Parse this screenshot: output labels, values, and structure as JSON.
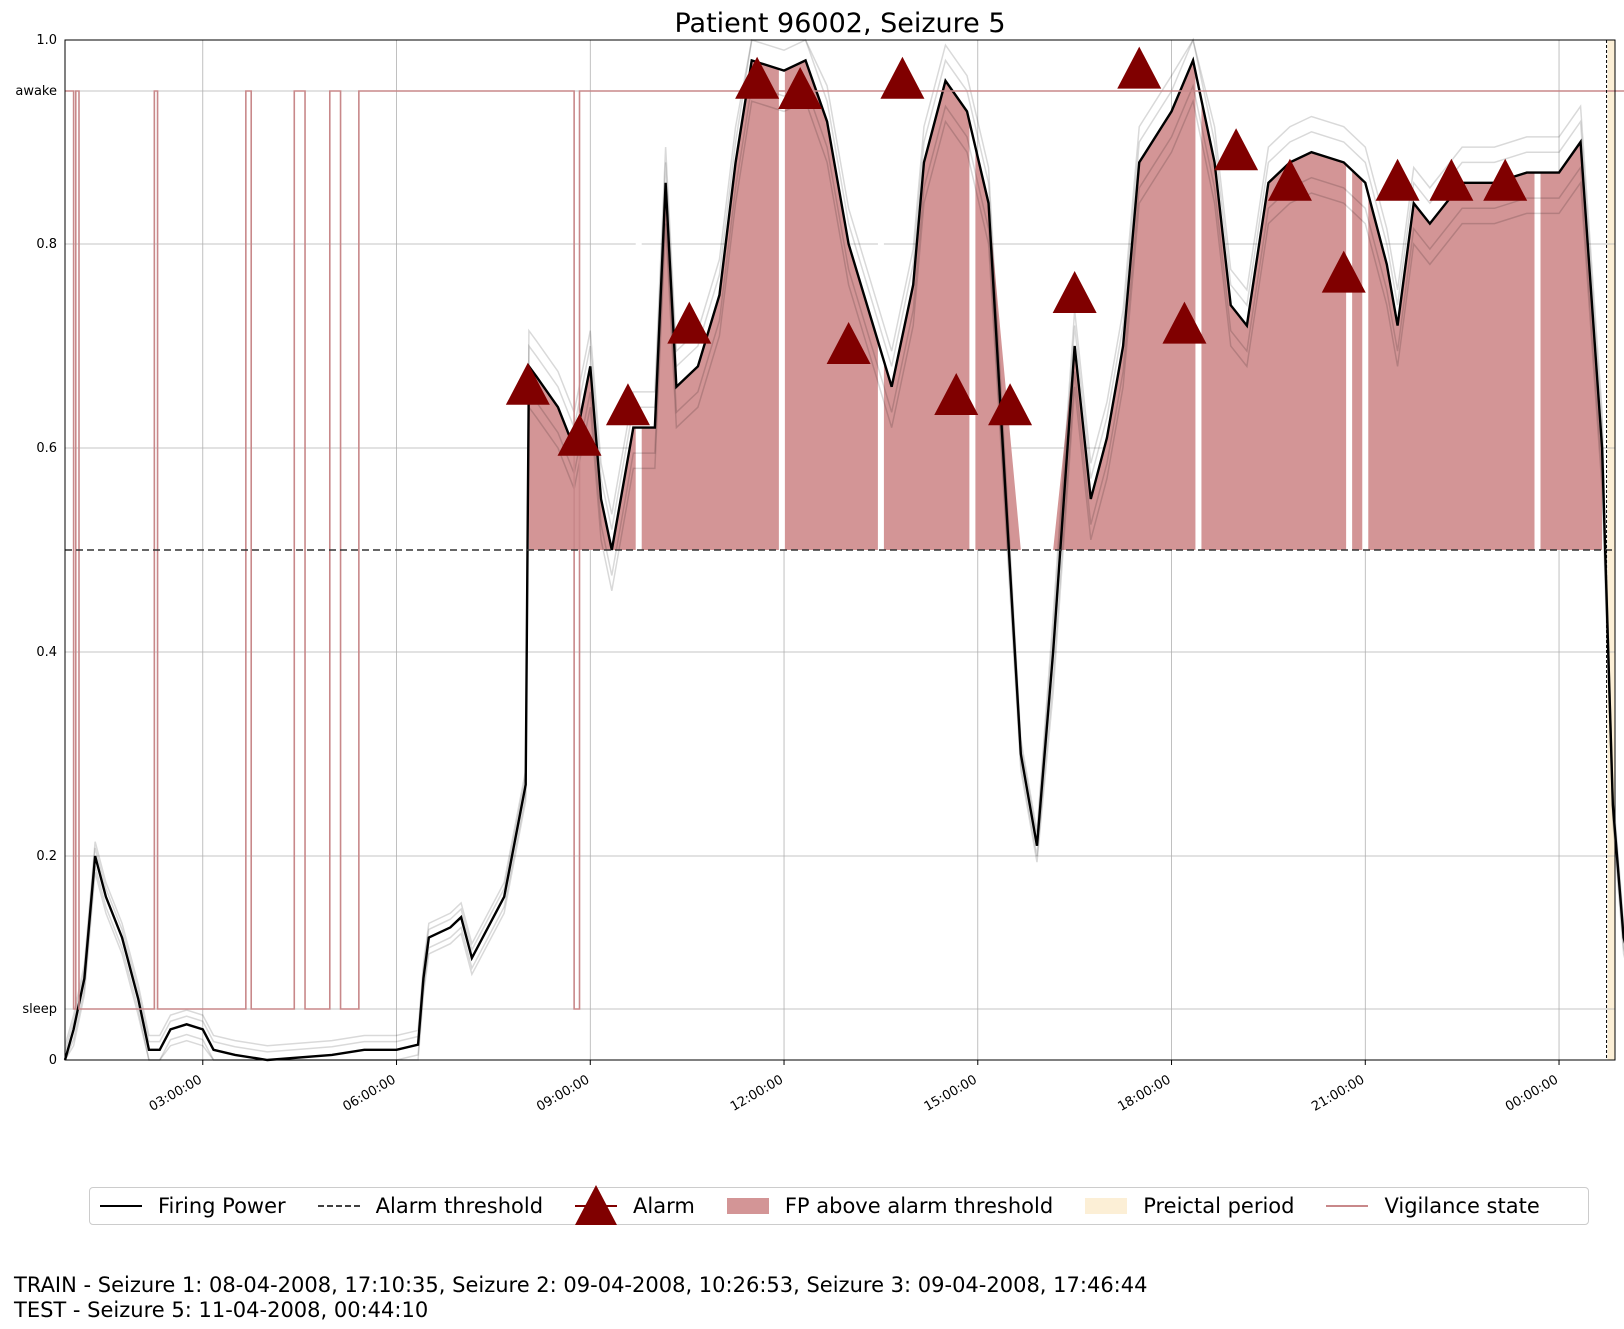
{
  "chart_data": {
    "type": "line",
    "title": "Patient 96002, Seizure 5",
    "xlabel": "",
    "ylabel": "",
    "x_unit": "hours since 00:52 (day 10-04-2008)",
    "xlim": [
      "00:52:00",
      "00:52:00 +1d"
    ],
    "ylim": [
      0,
      1.0
    ],
    "grid": true,
    "x_ticks": [
      "03:00:00",
      "06:00:00",
      "09:00:00",
      "12:00:00",
      "15:00:00",
      "18:00:00",
      "21:00:00",
      "00:00:00"
    ],
    "y_ticks": [
      "0",
      "0.2",
      "0.4",
      "0.6",
      "0.8",
      "1.0"
    ],
    "y_state_ticks": [
      {
        "label": "awake",
        "value": 0.95
      },
      {
        "label": "sleep",
        "value": 0.05
      }
    ],
    "alarm_threshold": 0.5,
    "series": [
      {
        "name": "Firing Power",
        "color": "#000000",
        "points": [
          [
            "00:52",
            0.0
          ],
          [
            "01:00",
            0.03
          ],
          [
            "01:10",
            0.08
          ],
          [
            "01:20",
            0.2
          ],
          [
            "01:30",
            0.16
          ],
          [
            "01:45",
            0.12
          ],
          [
            "02:00",
            0.06
          ],
          [
            "02:10",
            0.01
          ],
          [
            "02:20",
            0.01
          ],
          [
            "02:30",
            0.03
          ],
          [
            "02:45",
            0.035
          ],
          [
            "03:00",
            0.03
          ],
          [
            "03:10",
            0.01
          ],
          [
            "03:30",
            0.005
          ],
          [
            "04:00",
            0.0
          ],
          [
            "05:00",
            0.005
          ],
          [
            "05:30",
            0.01
          ],
          [
            "06:00",
            0.01
          ],
          [
            "06:20",
            0.015
          ],
          [
            "06:25",
            0.08
          ],
          [
            "06:30",
            0.12
          ],
          [
            "06:50",
            0.13
          ],
          [
            "07:00",
            0.14
          ],
          [
            "07:10",
            0.1
          ],
          [
            "07:40",
            0.16
          ],
          [
            "08:00",
            0.27
          ],
          [
            "08:03",
            0.68
          ],
          [
            "08:10",
            0.67
          ],
          [
            "08:30",
            0.64
          ],
          [
            "08:45",
            0.6
          ],
          [
            "09:00",
            0.68
          ],
          [
            "09:10",
            0.55
          ],
          [
            "09:20",
            0.5
          ],
          [
            "09:40",
            0.62
          ],
          [
            "10:00",
            0.62
          ],
          [
            "10:10",
            0.86
          ],
          [
            "10:20",
            0.66
          ],
          [
            "10:40",
            0.68
          ],
          [
            "11:00",
            0.75
          ],
          [
            "11:15",
            0.88
          ],
          [
            "11:30",
            0.98
          ],
          [
            "12:00",
            0.97
          ],
          [
            "12:20",
            0.98
          ],
          [
            "12:40",
            0.92
          ],
          [
            "13:00",
            0.8
          ],
          [
            "13:20",
            0.73
          ],
          [
            "13:40",
            0.66
          ],
          [
            "14:00",
            0.76
          ],
          [
            "14:10",
            0.88
          ],
          [
            "14:30",
            0.96
          ],
          [
            "14:50",
            0.93
          ],
          [
            "15:10",
            0.84
          ],
          [
            "15:40",
            0.3
          ],
          [
            "15:55",
            0.21
          ],
          [
            "16:10",
            0.4
          ],
          [
            "16:30",
            0.7
          ],
          [
            "16:45",
            0.55
          ],
          [
            "17:00",
            0.61
          ],
          [
            "17:15",
            0.7
          ],
          [
            "17:30",
            0.88
          ],
          [
            "18:00",
            0.93
          ],
          [
            "18:20",
            0.98
          ],
          [
            "18:40",
            0.88
          ],
          [
            "18:55",
            0.74
          ],
          [
            "19:10",
            0.72
          ],
          [
            "19:30",
            0.86
          ],
          [
            "19:50",
            0.88
          ],
          [
            "20:10",
            0.89
          ],
          [
            "20:40",
            0.88
          ],
          [
            "21:00",
            0.86
          ],
          [
            "21:20",
            0.78
          ],
          [
            "21:30",
            0.72
          ],
          [
            "21:45",
            0.84
          ],
          [
            "22:00",
            0.82
          ],
          [
            "22:30",
            0.86
          ],
          [
            "23:00",
            0.86
          ],
          [
            "23:30",
            0.87
          ],
          [
            "00:00",
            0.87
          ],
          [
            "00:20",
            0.9
          ],
          [
            "00:40",
            0.6
          ],
          [
            "00:50",
            0.25
          ],
          [
            "01:00",
            0.12
          ],
          [
            "01:20",
            0.04
          ]
        ]
      },
      {
        "name": "Vigilance state",
        "color": "#c8888a",
        "steps": [
          [
            "00:52",
            "awake"
          ],
          [
            "01:00",
            "sleep"
          ],
          [
            "01:02",
            "awake"
          ],
          [
            "01:05",
            "sleep"
          ],
          [
            "02:15",
            "awake"
          ],
          [
            "02:18",
            "sleep"
          ],
          [
            "03:40",
            "awake"
          ],
          [
            "03:45",
            "sleep"
          ],
          [
            "04:25",
            "awake"
          ],
          [
            "04:35",
            "sleep"
          ],
          [
            "04:58",
            "awake"
          ],
          [
            "05:08",
            "sleep"
          ],
          [
            "05:25",
            "awake"
          ],
          [
            "08:45",
            "sleep"
          ],
          [
            "08:50",
            "awake"
          ],
          [
            "01:22",
            "awake"
          ]
        ]
      }
    ],
    "alarms": [
      [
        "08:02",
        0.66
      ],
      [
        "08:50",
        0.61
      ],
      [
        "09:35",
        0.64
      ],
      [
        "10:32",
        0.72
      ],
      [
        "11:35",
        0.96
      ],
      [
        "12:15",
        0.95
      ],
      [
        "13:00",
        0.7
      ],
      [
        "13:50",
        0.96
      ],
      [
        "14:40",
        0.65
      ],
      [
        "15:30",
        0.64
      ],
      [
        "16:30",
        0.75
      ],
      [
        "17:30",
        0.97
      ],
      [
        "18:12",
        0.72
      ],
      [
        "19:00",
        0.89
      ],
      [
        "19:50",
        0.86
      ],
      [
        "20:40",
        0.77
      ],
      [
        "21:30",
        0.86
      ],
      [
        "22:20",
        0.86
      ],
      [
        "23:10",
        0.86
      ]
    ],
    "fp_above_threshold_gaps": [
      "09:45",
      "11:58",
      "13:30",
      "14:55",
      "18:25",
      "20:45",
      "21:00",
      "23:40"
    ],
    "preictal_period": [
      "00:45",
      "00:52 +1d"
    ],
    "seizure_onset_marker": "00:44:10"
  },
  "legend": {
    "items": [
      {
        "label": "Firing Power",
        "kind": "line"
      },
      {
        "label": "Alarm threshold",
        "kind": "dashed"
      },
      {
        "label": "Alarm",
        "kind": "triangle"
      },
      {
        "label": "FP above alarm threshold",
        "kind": "fill"
      },
      {
        "label": "Preictal period",
        "kind": "preictal"
      },
      {
        "label": "Vigilance state",
        "kind": "vline"
      }
    ]
  },
  "colors": {
    "firing_power": "#000000",
    "alarm": "#800000",
    "fill": "#d39596",
    "preictal": "#fcefd6",
    "vigilance": "#c8888a"
  },
  "footer": {
    "train": "TRAIN - Seizure 1: 08-04-2008, 17:10:35, Seizure 2: 09-04-2008, 10:26:53, Seizure 3: 09-04-2008, 17:46:44",
    "test": "TEST - Seizure 5: 11-04-2008, 00:44:10"
  }
}
